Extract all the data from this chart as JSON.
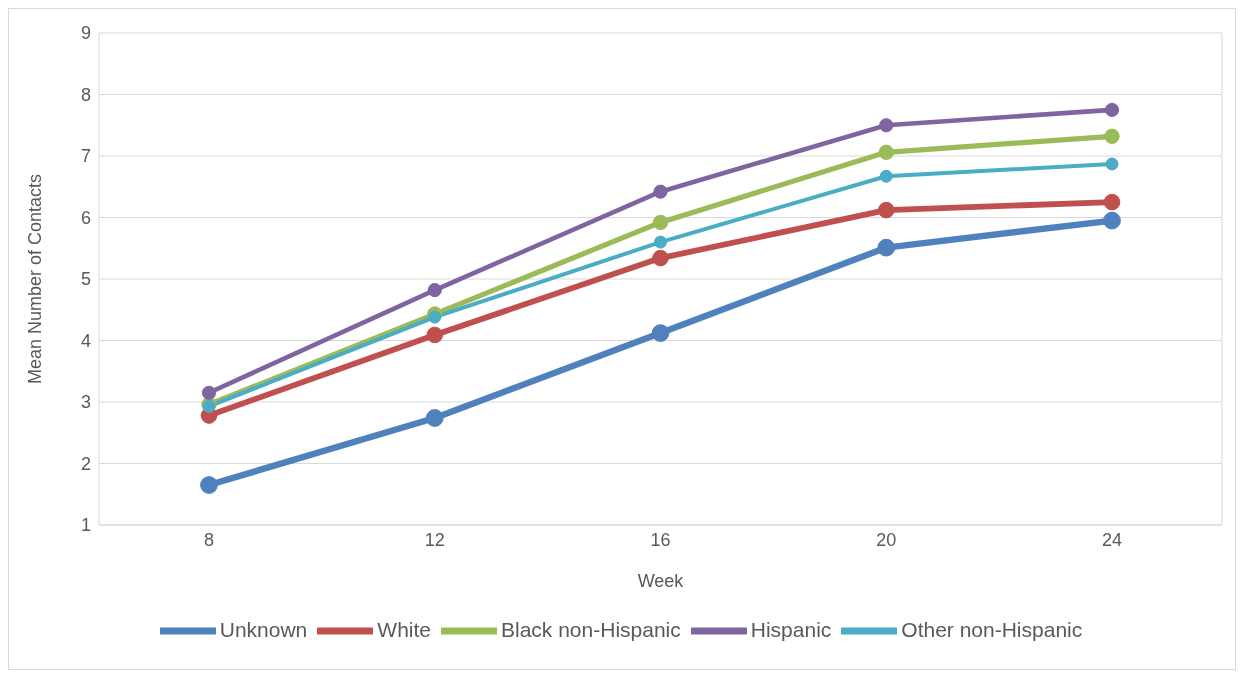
{
  "chart_data": {
    "type": "line",
    "xlabel": "Week",
    "ylabel": "Mean Number of Contacts",
    "categories": [
      "8",
      "12",
      "16",
      "20",
      "24"
    ],
    "series": [
      {
        "name": "Unknown",
        "color": "#4f81bd",
        "values": [
          1.65,
          2.74,
          4.12,
          5.51,
          5.95
        ]
      },
      {
        "name": "White",
        "color": "#c0504d",
        "values": [
          2.78,
          4.09,
          5.34,
          6.12,
          6.25
        ]
      },
      {
        "name": "Black non-Hispanic",
        "color": "#9bbb59",
        "values": [
          2.96,
          4.43,
          5.92,
          7.06,
          7.32
        ]
      },
      {
        "name": "Hispanic",
        "color": "#8064a2",
        "values": [
          3.15,
          4.82,
          6.42,
          7.5,
          7.75
        ]
      },
      {
        "name": "Other non-Hispanic",
        "color": "#4bacc6",
        "values": [
          2.93,
          4.38,
          5.6,
          6.67,
          6.87
        ]
      }
    ],
    "ylim": [
      1,
      9
    ],
    "yticks": [
      1,
      2,
      3,
      4,
      5,
      6,
      7,
      8,
      9
    ],
    "grid": "y",
    "legend": "bottom",
    "marker": "circle",
    "line_style": "solid"
  }
}
